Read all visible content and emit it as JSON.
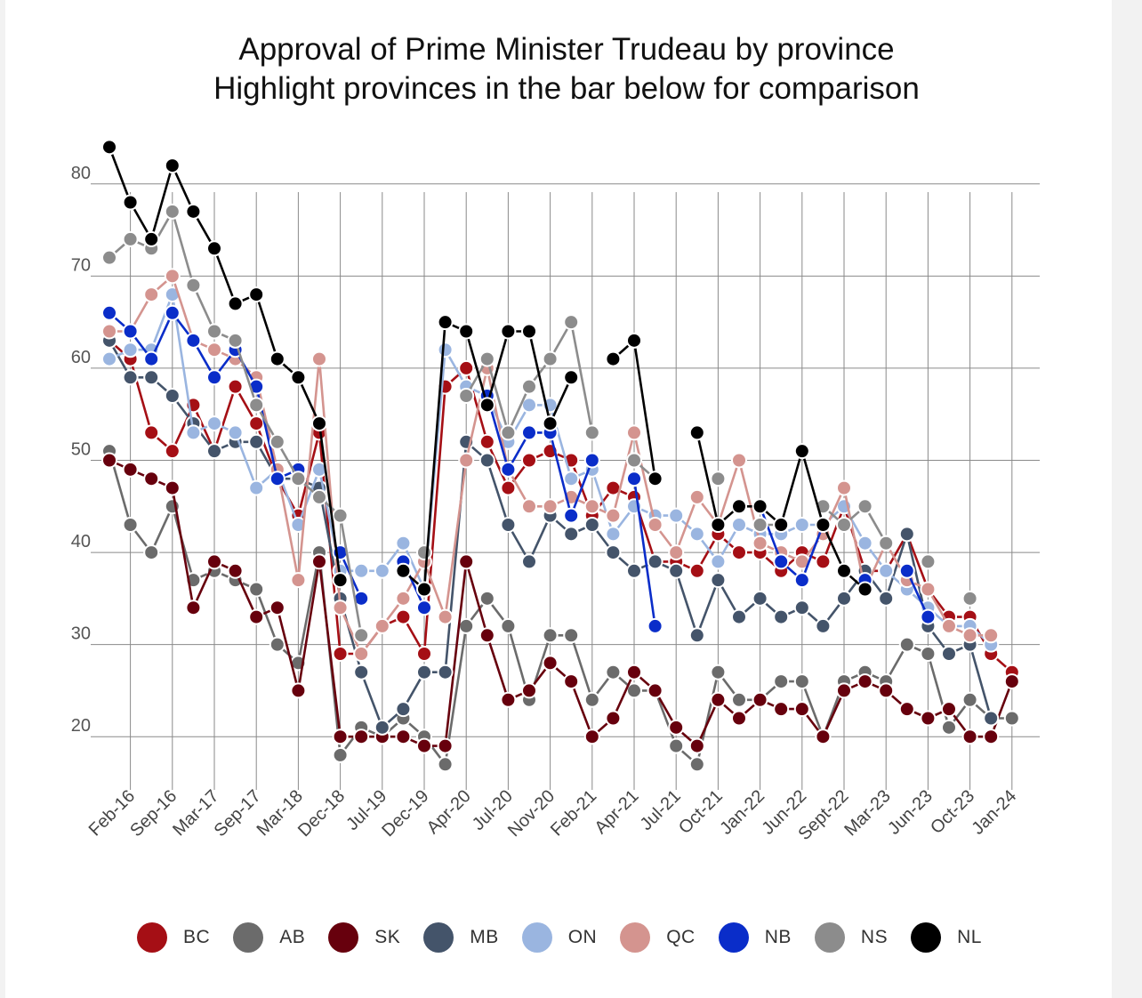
{
  "title_line1": "Approval of Prime Minister Trudeau by province",
  "title_line2": "Highlight provinces in the bar below for comparison",
  "chart_data": {
    "type": "line",
    "title": "Approval of Prime Minister Trudeau by province",
    "subtitle": "Highlight provinces in the bar below for comparison",
    "xlabel": "",
    "ylabel": "",
    "ylim": [
      15,
      85
    ],
    "yticks": [
      20,
      30,
      40,
      50,
      60,
      70,
      80
    ],
    "x_tick_labels": [
      "Feb-16",
      "Sep-16",
      "Mar-17",
      "Sep-17",
      "Mar-18",
      "Dec-18",
      "Jul-19",
      "Dec-19",
      "Apr-20",
      "Jul-20",
      "Nov-20",
      "Feb-21",
      "Apr-21",
      "Jul-21",
      "Oct-21",
      "Jan-22",
      "Jun-22",
      "Sept-22",
      "Mar-23",
      "Jun-23",
      "Oct-23",
      "Jan-24"
    ],
    "n_points": 45,
    "legend_position": "bottom",
    "series": [
      {
        "name": "BC",
        "color": "#a50f15",
        "values": [
          63,
          61,
          53,
          51,
          56,
          51,
          58,
          54,
          48,
          44,
          53,
          29,
          29,
          32,
          33,
          29,
          58,
          60,
          52,
          47,
          50,
          51,
          50,
          44,
          47,
          46,
          39,
          39,
          38,
          42,
          40,
          40,
          38,
          40,
          39,
          45,
          38,
          38,
          42,
          36,
          33,
          33,
          29,
          27,
          null
        ]
      },
      {
        "name": "AB",
        "color": "#6b6b6b",
        "values": [
          51,
          43,
          40,
          45,
          37,
          38,
          37,
          36,
          30,
          28,
          40,
          18,
          21,
          20,
          22,
          20,
          17,
          32,
          35,
          32,
          24,
          31,
          31,
          24,
          27,
          25,
          25,
          19,
          17,
          27,
          24,
          24,
          26,
          26,
          20,
          26,
          27,
          26,
          30,
          29,
          21,
          24,
          22,
          22,
          null
        ]
      },
      {
        "name": "SK",
        "color": "#67000d",
        "values": [
          50,
          49,
          48,
          47,
          34,
          39,
          38,
          33,
          34,
          25,
          39,
          20,
          20,
          20,
          20,
          19,
          19,
          39,
          31,
          24,
          25,
          28,
          26,
          20,
          22,
          27,
          25,
          21,
          19,
          24,
          22,
          24,
          23,
          23,
          20,
          25,
          26,
          25,
          23,
          22,
          23,
          20,
          20,
          26,
          null
        ]
      },
      {
        "name": "MB",
        "color": "#44546a",
        "values": [
          63,
          59,
          59,
          57,
          54,
          51,
          52,
          52,
          48,
          48,
          47,
          35,
          27,
          21,
          23,
          27,
          27,
          52,
          50,
          43,
          39,
          44,
          42,
          43,
          40,
          38,
          39,
          38,
          31,
          37,
          33,
          35,
          33,
          34,
          32,
          35,
          38,
          35,
          42,
          32,
          29,
          30,
          22,
          null,
          null
        ]
      },
      {
        "name": "ON",
        "color": "#9ab5e0",
        "values": [
          61,
          62,
          62,
          68,
          53,
          54,
          53,
          47,
          49,
          43,
          49,
          38,
          38,
          38,
          41,
          36,
          62,
          58,
          57,
          52,
          56,
          56,
          48,
          49,
          42,
          45,
          44,
          44,
          42,
          39,
          43,
          42,
          42,
          43,
          43,
          45,
          41,
          38,
          36,
          34,
          32,
          32,
          30,
          null,
          null
        ]
      },
      {
        "name": "QC",
        "color": "#d4948f",
        "values": [
          64,
          64,
          68,
          70,
          63,
          62,
          61,
          59,
          49,
          37,
          61,
          34,
          29,
          32,
          35,
          39,
          33,
          50,
          60,
          49,
          45,
          45,
          46,
          45,
          44,
          53,
          43,
          40,
          46,
          43,
          50,
          41,
          40,
          39,
          42,
          47,
          36,
          41,
          37,
          36,
          32,
          31,
          31,
          null,
          null
        ]
      },
      {
        "name": "NB",
        "color": "#0a2dc9",
        "values": [
          66,
          64,
          61,
          66,
          63,
          59,
          62,
          58,
          48,
          49,
          null,
          40,
          35,
          null,
          39,
          34,
          null,
          null,
          57,
          49,
          53,
          53,
          44,
          50,
          null,
          48,
          32,
          null,
          null,
          null,
          null,
          45,
          39,
          37,
          43,
          null,
          37,
          null,
          38,
          33,
          null,
          null,
          null,
          null,
          null
        ]
      },
      {
        "name": "NS",
        "color": "#8c8c8c",
        "values": [
          72,
          74,
          73,
          77,
          69,
          64,
          63,
          56,
          52,
          48,
          46,
          44,
          31,
          null,
          null,
          40,
          null,
          57,
          61,
          53,
          58,
          61,
          65,
          53,
          null,
          50,
          48,
          null,
          null,
          48,
          null,
          43,
          43,
          null,
          45,
          43,
          45,
          41,
          null,
          39,
          null,
          35,
          null,
          null,
          null
        ]
      },
      {
        "name": "NL",
        "color": "#000000",
        "values": [
          84,
          78,
          74,
          82,
          77,
          73,
          67,
          68,
          61,
          59,
          54,
          37,
          null,
          null,
          38,
          36,
          65,
          64,
          56,
          64,
          64,
          54,
          59,
          null,
          61,
          63,
          48,
          null,
          53,
          43,
          45,
          45,
          43,
          51,
          43,
          38,
          36,
          null,
          null,
          null,
          null,
          null,
          null,
          null,
          null
        ]
      }
    ]
  },
  "legend": [
    {
      "label": "BC",
      "color": "#a50f15"
    },
    {
      "label": "AB",
      "color": "#6b6b6b"
    },
    {
      "label": "SK",
      "color": "#67000d"
    },
    {
      "label": "MB",
      "color": "#44546a"
    },
    {
      "label": "ON",
      "color": "#9ab5e0"
    },
    {
      "label": "QC",
      "color": "#d4948f"
    },
    {
      "label": "NB",
      "color": "#0a2dc9"
    },
    {
      "label": "NS",
      "color": "#8c8c8c"
    },
    {
      "label": "NL",
      "color": "#000000"
    }
  ]
}
